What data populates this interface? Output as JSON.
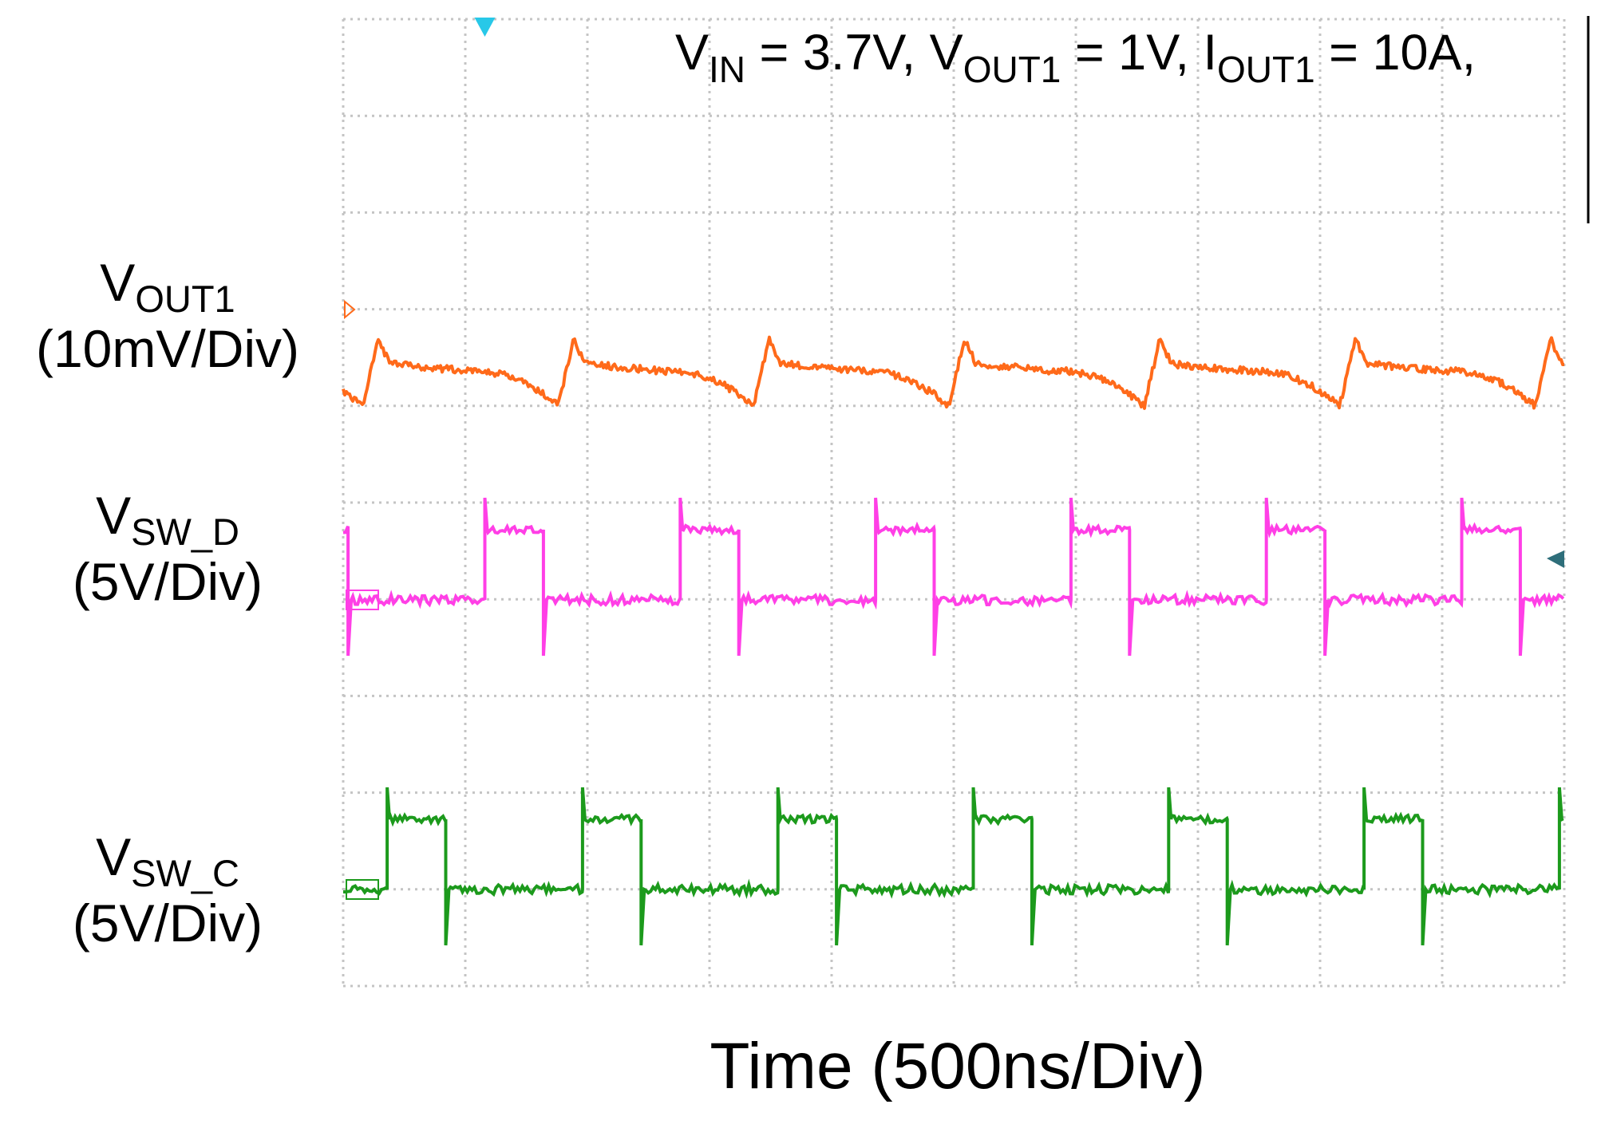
{
  "chart_data": {
    "type": "line",
    "xlabel": "Time (500ns/Div)",
    "conditions": {
      "vin": {
        "sym": "V",
        "sub": "IN",
        "value": " = 3.7V, "
      },
      "vout": {
        "sym": "V",
        "sub": "OUT1",
        "value": " = 1V, "
      },
      "iout": {
        "sym": "I",
        "sub": "OUT1",
        "value": " = 10A,"
      }
    },
    "grid": true,
    "divisions": {
      "x": 10,
      "y": 10
    },
    "time_per_div_ns": 500,
    "switching_period_ns": 800,
    "series": [
      {
        "key": "vout",
        "sym": "V",
        "sub": "OUT1",
        "scale": "(10mV/Div)",
        "color": "#ff6a1a",
        "waveform": "ripple",
        "offset_ns": 880,
        "ripple_pp_mV": 7
      },
      {
        "key": "swd",
        "sym": "V",
        "sub": "SW_D",
        "scale": "(5V/Div)",
        "color": "#ff3fe6",
        "waveform": "square",
        "offset_ns": 580,
        "high_ns": 240,
        "high_V": 3.7,
        "low_V": 0
      },
      {
        "key": "swc",
        "sym": "V",
        "sub": "SW_C",
        "scale": "(5V/Div)",
        "color": "#1c9a1c",
        "waveform": "square",
        "offset_ns": 180,
        "high_ns": 240,
        "high_V": 3.7,
        "low_V": 0
      }
    ],
    "colors": {
      "trigger": "#28c8e8",
      "grid": "#c4c4c4",
      "ch_ref": "#2e6e7a"
    }
  }
}
